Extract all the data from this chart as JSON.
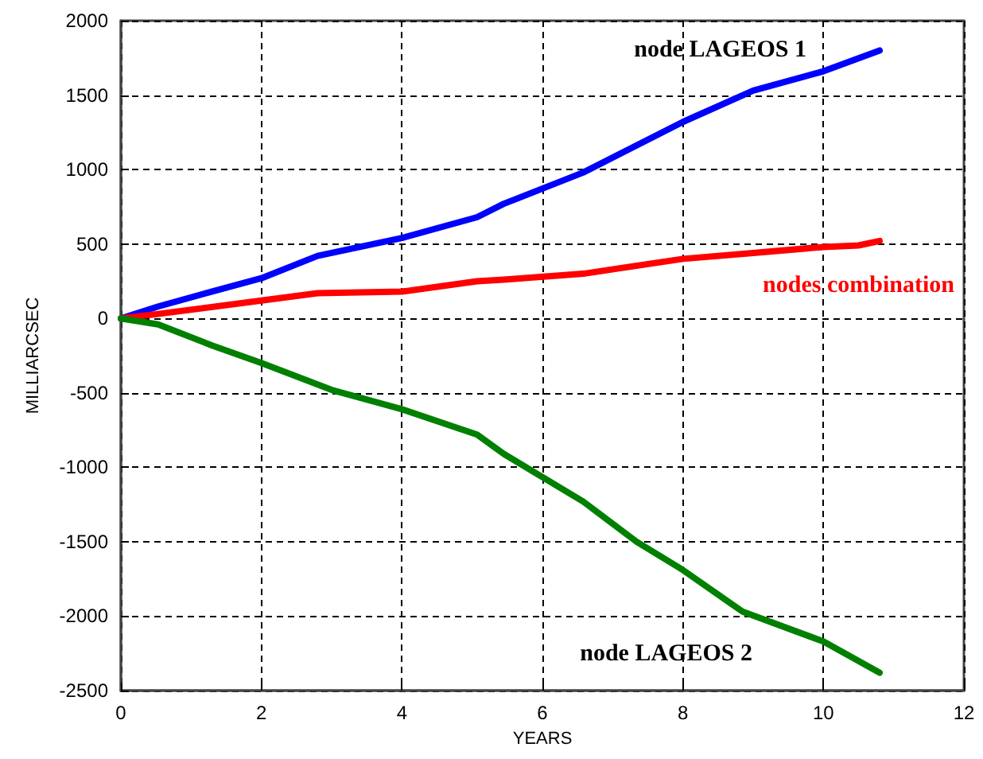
{
  "chart_data": {
    "type": "line",
    "xlabel": "YEARS",
    "ylabel": "MILLIARCSEC",
    "xlim": [
      0,
      12
    ],
    "xticks": [
      0,
      2,
      4,
      6,
      8,
      10,
      12
    ],
    "ylim": [
      -2500,
      2000
    ],
    "yticks": [
      -2500,
      -2000,
      -1500,
      -1000,
      -500,
      0,
      500,
      1000,
      1500,
      2000
    ],
    "grid": true,
    "legend": false,
    "marker": "none",
    "line_style": "solid",
    "series": [
      {
        "name": "node LAGEOS 1",
        "color": "#0000ff",
        "x": [
          0,
          0.53,
          1.29,
          2.0,
          2.8,
          4.0,
          5.07,
          5.45,
          6.58,
          8.0,
          9.0,
          10.0,
          10.8
        ],
        "values": [
          0,
          80,
          180,
          270,
          420,
          540,
          680,
          770,
          980,
          1320,
          1530,
          1660,
          1800
        ]
      },
      {
        "name": "nodes combination",
        "color": "#ff0000",
        "x": [
          0,
          0.53,
          2.0,
          2.8,
          4.0,
          5.07,
          5.45,
          6.58,
          8.0,
          9.0,
          10.0,
          10.5,
          10.8
        ],
        "values": [
          0,
          30,
          120,
          170,
          180,
          250,
          260,
          300,
          400,
          440,
          480,
          490,
          520
        ]
      },
      {
        "name": "node LAGEOS 2",
        "color": "#008000",
        "x": [
          0,
          0.53,
          1.29,
          2.0,
          3.0,
          4.0,
          5.07,
          5.45,
          6.58,
          7.34,
          8.0,
          8.85,
          10.0,
          10.8
        ],
        "values": [
          0,
          -40,
          -180,
          -300,
          -480,
          -610,
          -780,
          -910,
          -1230,
          -1500,
          -1690,
          -1970,
          -2170,
          -2380
        ]
      }
    ]
  }
}
